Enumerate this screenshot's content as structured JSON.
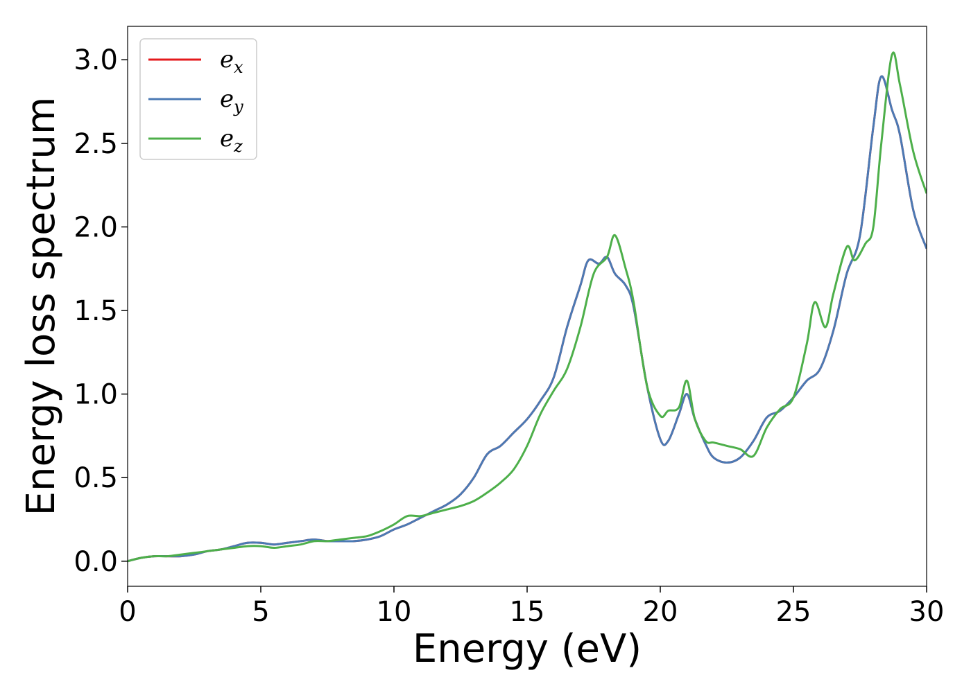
{
  "chart_data": {
    "type": "line",
    "title": "",
    "xlabel": "Energy (eV)",
    "ylabel": "Energy loss spectrum",
    "xlim": [
      0,
      30
    ],
    "ylim": [
      -0.15,
      3.2
    ],
    "x_ticks": [
      "0",
      "5",
      "10",
      "15",
      "20",
      "25",
      "30"
    ],
    "y_ticks": [
      "0.0",
      "0.5",
      "1.0",
      "1.5",
      "2.0",
      "2.5",
      "3.0"
    ],
    "grid": false,
    "legend_position": "top-left",
    "series": [
      {
        "name": "e",
        "subscript": "x",
        "color": "#e41a1c",
        "x": [
          0,
          0.5,
          1,
          1.5,
          2,
          2.5,
          3,
          3.5,
          4,
          4.5,
          5,
          5.5,
          6,
          6.5,
          7,
          7.5,
          8,
          8.5,
          9,
          9.5,
          10,
          10.5,
          11,
          11.5,
          12,
          12.5,
          13,
          13.5,
          14,
          14.5,
          15,
          15.5,
          16,
          16.5,
          17,
          17.3,
          17.7,
          18,
          18.3,
          18.7,
          19,
          19.5,
          20,
          20.3,
          20.7,
          21,
          21.3,
          21.7,
          22,
          22.5,
          23,
          23.5,
          24,
          24.5,
          25,
          25.5,
          26,
          26.5,
          27,
          27.5,
          28,
          28.3,
          28.7,
          29,
          29.5,
          30
        ],
        "y": [
          0,
          0.02,
          0.03,
          0.03,
          0.03,
          0.04,
          0.06,
          0.07,
          0.09,
          0.11,
          0.11,
          0.1,
          0.11,
          0.12,
          0.13,
          0.12,
          0.12,
          0.12,
          0.13,
          0.15,
          0.19,
          0.22,
          0.26,
          0.3,
          0.34,
          0.4,
          0.5,
          0.64,
          0.69,
          0.77,
          0.85,
          0.96,
          1.1,
          1.4,
          1.65,
          1.8,
          1.78,
          1.82,
          1.72,
          1.65,
          1.52,
          1.05,
          0.73,
          0.72,
          0.88,
          1.0,
          0.85,
          0.7,
          0.62,
          0.59,
          0.62,
          0.72,
          0.86,
          0.9,
          0.98,
          1.08,
          1.15,
          1.38,
          1.72,
          1.95,
          2.6,
          2.9,
          2.7,
          2.55,
          2.1,
          1.87
        ]
      },
      {
        "name": "e",
        "subscript": "y",
        "color": "#4b7ab4",
        "x": [
          0,
          0.5,
          1,
          1.5,
          2,
          2.5,
          3,
          3.5,
          4,
          4.5,
          5,
          5.5,
          6,
          6.5,
          7,
          7.5,
          8,
          8.5,
          9,
          9.5,
          10,
          10.5,
          11,
          11.5,
          12,
          12.5,
          13,
          13.5,
          14,
          14.5,
          15,
          15.5,
          16,
          16.5,
          17,
          17.3,
          17.7,
          18,
          18.3,
          18.7,
          19,
          19.5,
          20,
          20.3,
          20.7,
          21,
          21.3,
          21.7,
          22,
          22.5,
          23,
          23.5,
          24,
          24.5,
          25,
          25.5,
          26,
          26.5,
          27,
          27.5,
          28,
          28.3,
          28.7,
          29,
          29.5,
          30
        ],
        "y": [
          0,
          0.02,
          0.03,
          0.03,
          0.03,
          0.04,
          0.06,
          0.07,
          0.09,
          0.11,
          0.11,
          0.1,
          0.11,
          0.12,
          0.13,
          0.12,
          0.12,
          0.12,
          0.13,
          0.15,
          0.19,
          0.22,
          0.26,
          0.3,
          0.34,
          0.4,
          0.5,
          0.64,
          0.69,
          0.77,
          0.85,
          0.96,
          1.1,
          1.4,
          1.65,
          1.8,
          1.78,
          1.82,
          1.72,
          1.65,
          1.52,
          1.05,
          0.73,
          0.72,
          0.88,
          1.0,
          0.85,
          0.7,
          0.62,
          0.59,
          0.62,
          0.72,
          0.86,
          0.9,
          0.98,
          1.08,
          1.15,
          1.38,
          1.72,
          1.95,
          2.6,
          2.9,
          2.7,
          2.55,
          2.1,
          1.87
        ]
      },
      {
        "name": "e",
        "subscript": "z",
        "color": "#4daf4a",
        "x": [
          0,
          0.5,
          1,
          1.5,
          2,
          2.5,
          3,
          3.5,
          4,
          4.5,
          5,
          5.5,
          6,
          6.5,
          7,
          7.5,
          8,
          8.5,
          9,
          9.5,
          10,
          10.5,
          11,
          11.5,
          12,
          12.5,
          13,
          13.5,
          14,
          14.5,
          15,
          15.5,
          16,
          16.5,
          17,
          17.5,
          18,
          18.3,
          18.7,
          19,
          19.5,
          20,
          20.3,
          20.7,
          21,
          21.3,
          21.7,
          22,
          22.5,
          23,
          23.5,
          24,
          24.5,
          25,
          25.5,
          25.8,
          26.2,
          26.5,
          27,
          27.3,
          27.7,
          28,
          28.3,
          28.7,
          29,
          29.5,
          30
        ],
        "y": [
          0,
          0.02,
          0.03,
          0.03,
          0.04,
          0.05,
          0.06,
          0.07,
          0.08,
          0.09,
          0.09,
          0.08,
          0.09,
          0.1,
          0.12,
          0.12,
          0.13,
          0.14,
          0.15,
          0.18,
          0.22,
          0.27,
          0.27,
          0.29,
          0.31,
          0.33,
          0.36,
          0.41,
          0.47,
          0.55,
          0.69,
          0.88,
          1.02,
          1.15,
          1.4,
          1.72,
          1.82,
          1.95,
          1.75,
          1.55,
          1.05,
          0.87,
          0.9,
          0.92,
          1.08,
          0.85,
          0.72,
          0.71,
          0.69,
          0.67,
          0.63,
          0.8,
          0.91,
          0.98,
          1.3,
          1.55,
          1.4,
          1.6,
          1.88,
          1.8,
          1.9,
          2.0,
          2.5,
          3.03,
          2.85,
          2.45,
          2.2
        ]
      }
    ]
  }
}
